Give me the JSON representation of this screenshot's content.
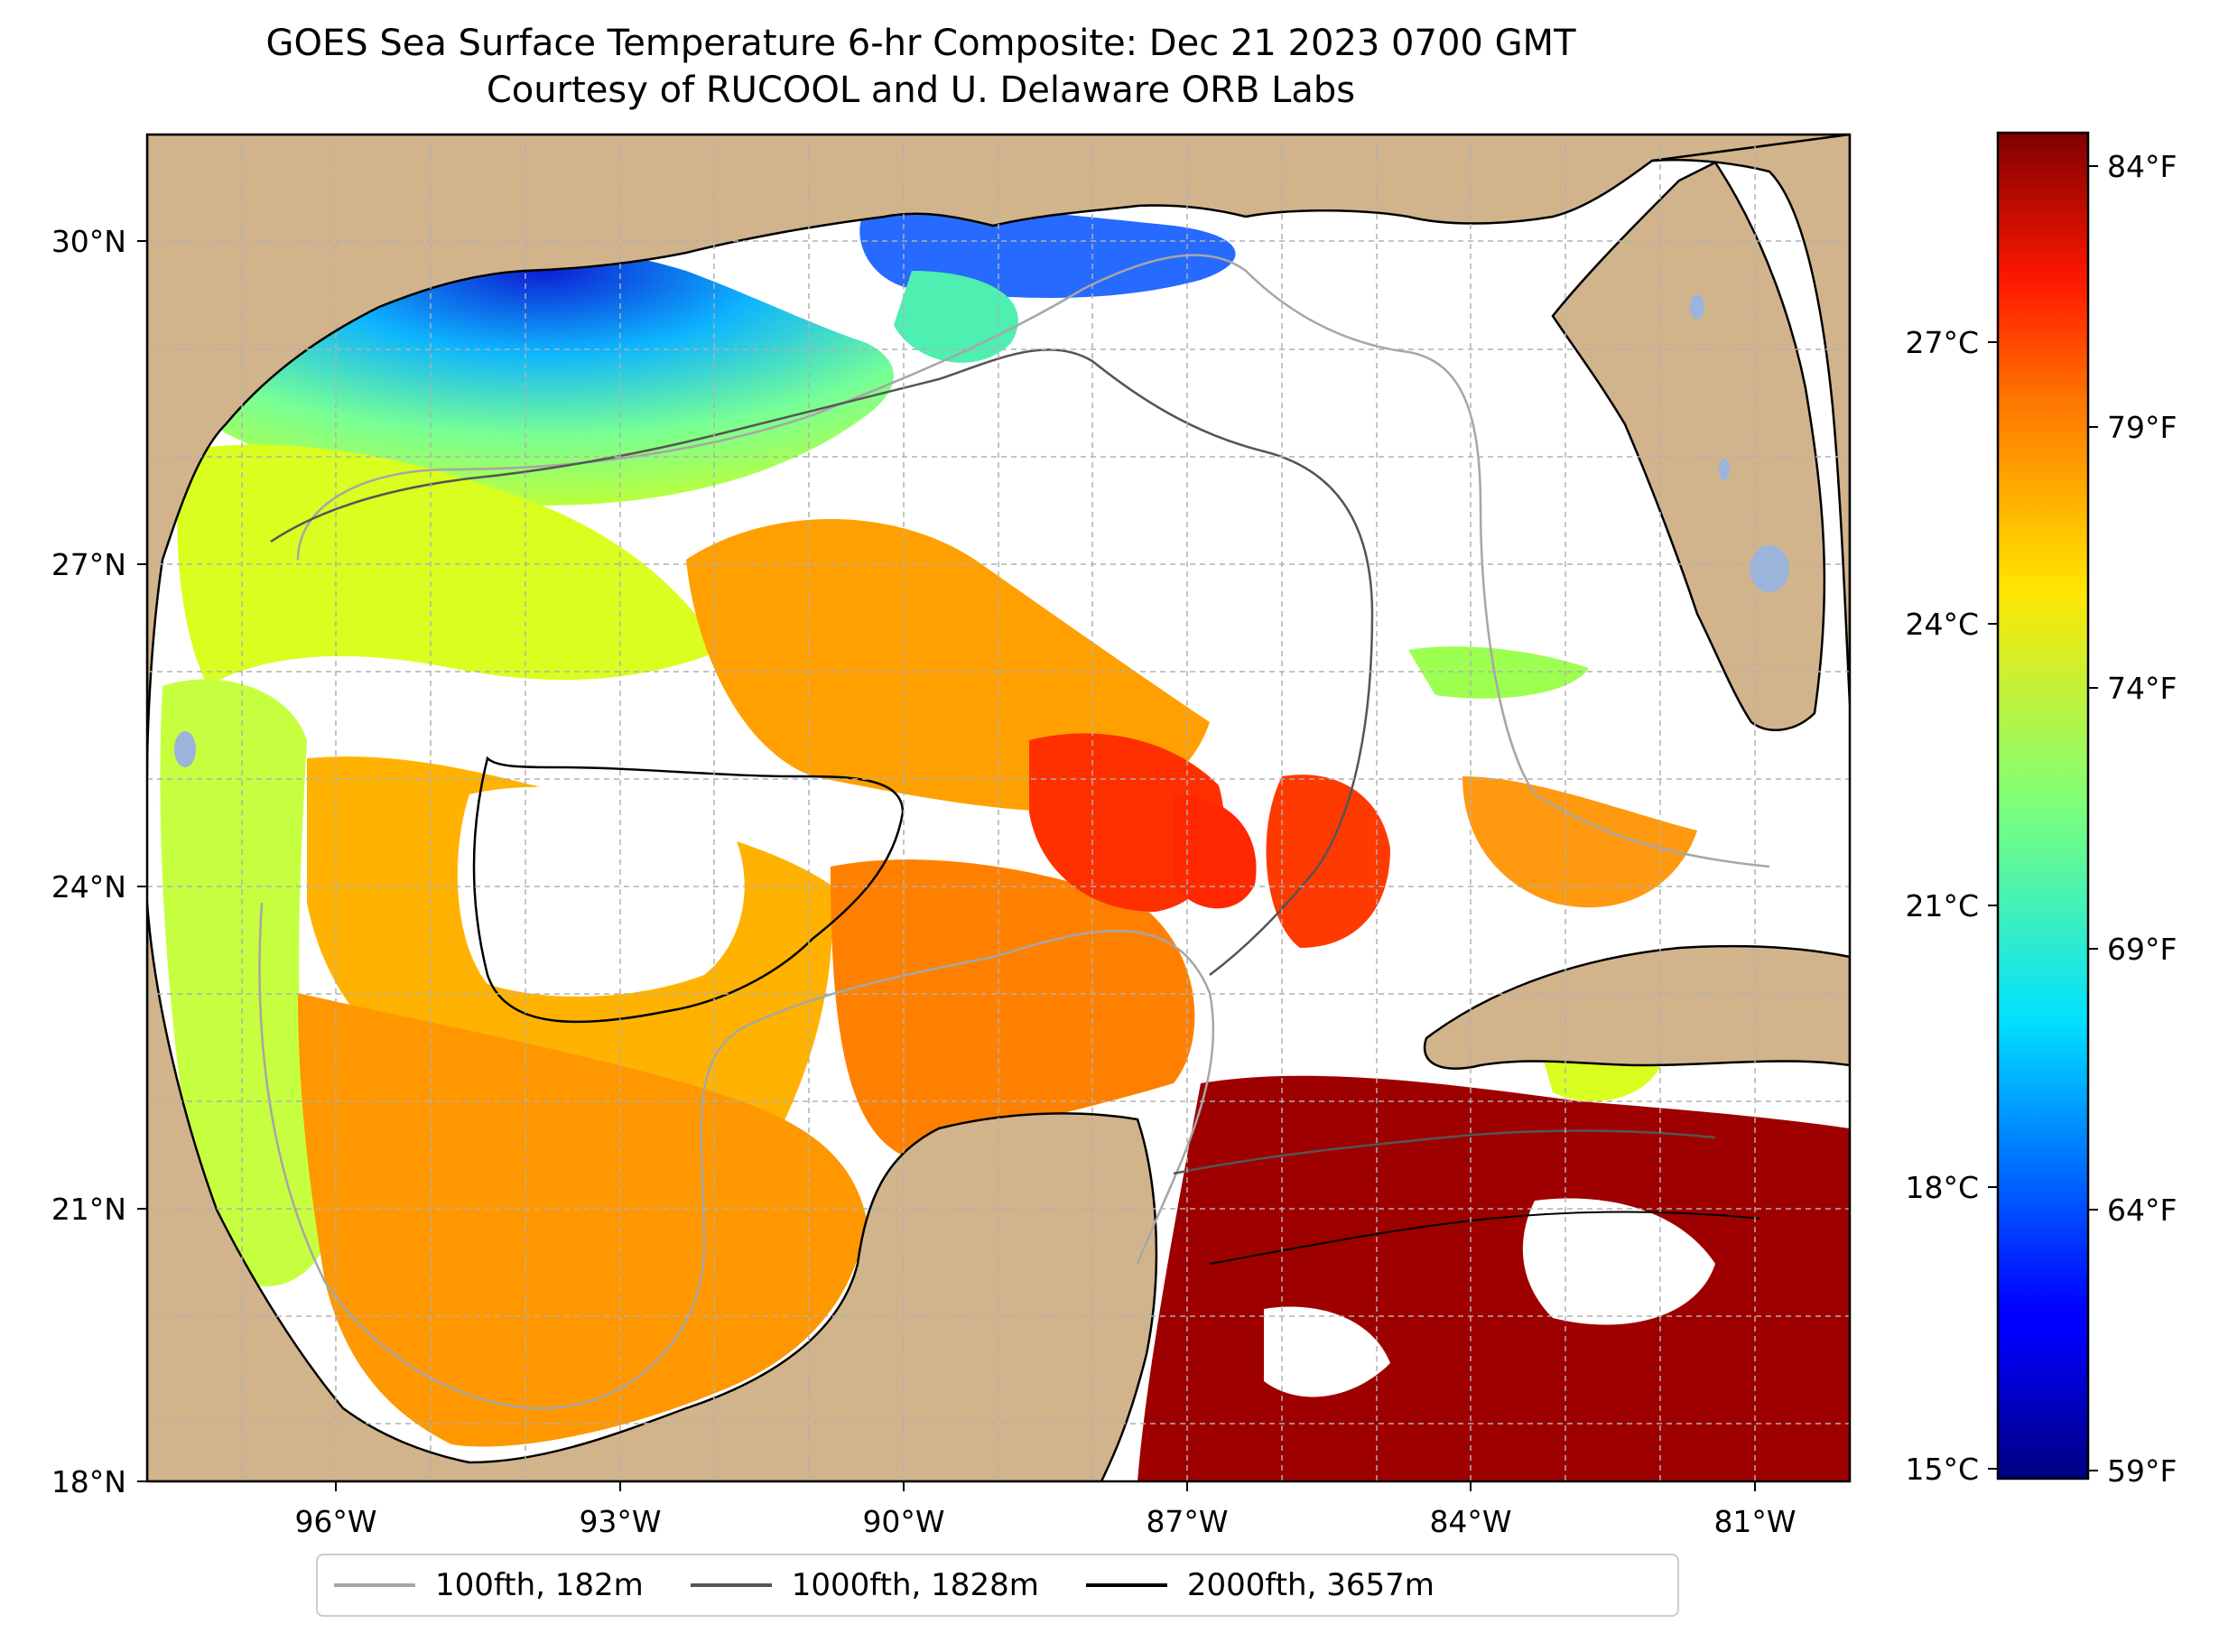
{
  "title": {
    "line1": "GOES Sea Surface Temperature 6-hr Composite: Dec 21 2023 0700 GMT",
    "line2": "Courtesy of RUCOOL and U. Delaware ORB Labs"
  },
  "map": {
    "region": "Gulf of Mexico",
    "lat_ticks": [
      "30°N",
      "27°N",
      "24°N",
      "21°N",
      "18°N"
    ],
    "lon_ticks": [
      "96°W",
      "93°W",
      "90°W",
      "87°W",
      "84°W",
      "81°W"
    ],
    "lat_range": [
      18,
      31
    ],
    "lon_range": [
      -98,
      -80
    ],
    "grid": true,
    "colors": {
      "land": "#d2b48c",
      "water_cloud": "#ffffff",
      "lake": "#9ab4dc",
      "grid": "#b0b0b0"
    }
  },
  "colorbar": {
    "celsius_ticks": [
      "27°C",
      "24°C",
      "21°C",
      "18°C",
      "15°C"
    ],
    "fahrenheit_ticks": [
      "84°F",
      "79°F",
      "74°F",
      "69°F",
      "64°F",
      "59°F"
    ],
    "colormap": "jet",
    "range_f": [
      58.5,
      85
    ]
  },
  "legend": {
    "items": [
      {
        "label": "100fth, 182m",
        "color": "#a6a6a6"
      },
      {
        "label": "1000fth, 1828m",
        "color": "#555555"
      },
      {
        "label": "2000fth, 3657m",
        "color": "#000000"
      }
    ]
  }
}
